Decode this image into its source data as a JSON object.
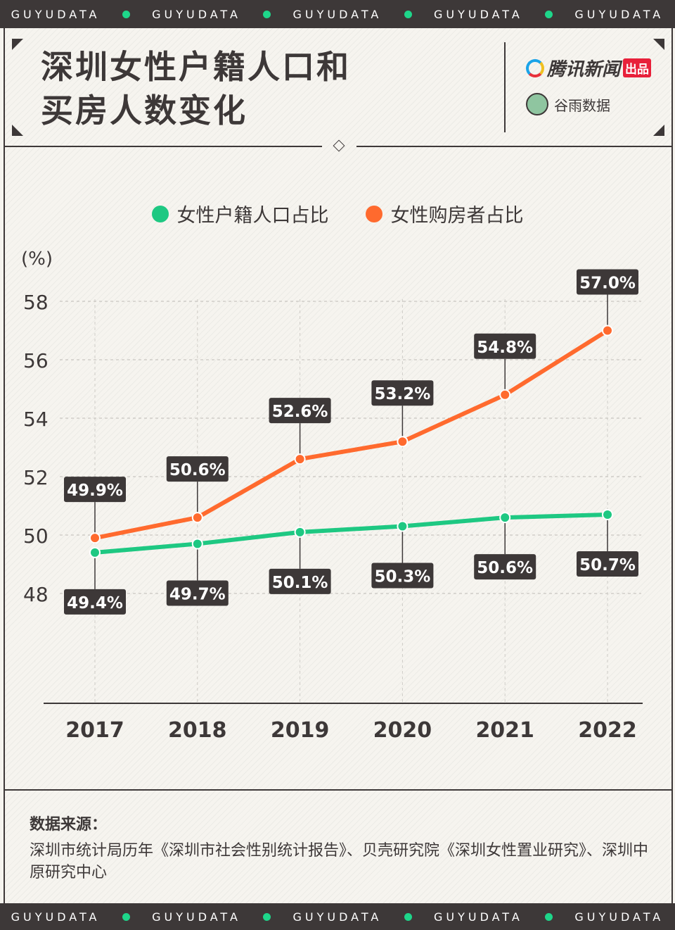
{
  "brand_strip": "GUYUDATA",
  "title_line1": "深圳女性户籍人口和",
  "title_line2": "买房人数变化",
  "logos": {
    "tencent": "腾讯新闻",
    "tencent_badge": "出品",
    "guyu": "谷雨数据",
    "guyu_sub": "GUYUDATA"
  },
  "colors": {
    "dark": "#3d3838",
    "green": "#1ec882",
    "orange": "#ff6a2e"
  },
  "chart_data": {
    "type": "line",
    "categories": [
      "2017",
      "2018",
      "2019",
      "2020",
      "2021",
      "2022"
    ],
    "series": [
      {
        "name": "女性户籍人口占比",
        "color": "#1ec882",
        "values": [
          49.4,
          49.7,
          50.1,
          50.3,
          50.6,
          50.7
        ],
        "labels": [
          "49.4%",
          "49.7%",
          "50.1%",
          "50.3%",
          "50.6%",
          "50.7%"
        ]
      },
      {
        "name": "女性购房者占比",
        "color": "#ff6a2e",
        "values": [
          49.9,
          50.6,
          52.6,
          53.2,
          54.8,
          57.0
        ],
        "labels": [
          "49.9%",
          "50.6%",
          "52.6%",
          "53.2%",
          "54.8%",
          "57.0%"
        ]
      }
    ],
    "yunit": "(%)",
    "yticks": [
      "48",
      "50",
      "52",
      "54",
      "56",
      "58"
    ],
    "ylim": [
      44.2,
      58
    ],
    "grid": true,
    "legend": "top-center"
  },
  "source": {
    "heading": "数据来源：",
    "text": "深圳市统计局历年《深圳市社会性别统计报告》、贝壳研究院《深圳女性置业研究》、深圳中原研究中心"
  }
}
